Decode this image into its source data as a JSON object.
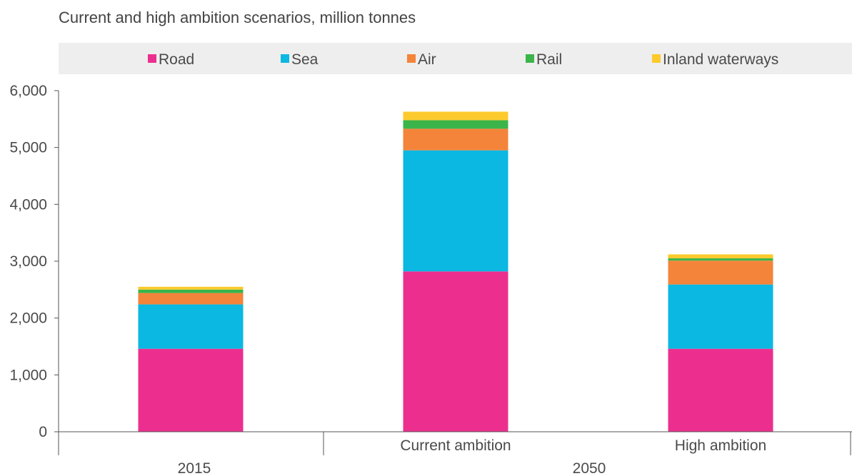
{
  "chart_data": {
    "type": "bar",
    "stacked": true,
    "title": "Current and high ambition scenarios, million tonnes",
    "categories": [
      "",
      "Current ambition",
      "High ambition"
    ],
    "groups": [
      {
        "label": "2015",
        "categories": [
          ""
        ]
      },
      {
        "label": "2050",
        "categories": [
          "Current ambition",
          "High ambition"
        ]
      }
    ],
    "series": [
      {
        "name": "Road",
        "color": "#ec2f8f",
        "values": [
          1460,
          2820,
          1460
        ]
      },
      {
        "name": "Sea",
        "color": "#0bb8e2",
        "values": [
          780,
          2130,
          1130
        ]
      },
      {
        "name": "Air",
        "color": "#f4843a",
        "values": [
          200,
          380,
          420
        ]
      },
      {
        "name": "Rail",
        "color": "#3bb54a",
        "values": [
          60,
          150,
          40
        ]
      },
      {
        "name": "Inland waterways",
        "color": "#fcca2d",
        "values": [
          50,
          150,
          70
        ]
      }
    ],
    "yticks": [
      "0",
      "1,000",
      "2,000",
      "3,000",
      "4,000",
      "5,000",
      "6,000"
    ],
    "ylim": [
      0,
      6000
    ],
    "xlabel": "",
    "ylabel": "",
    "grid": false,
    "legend": "top"
  }
}
